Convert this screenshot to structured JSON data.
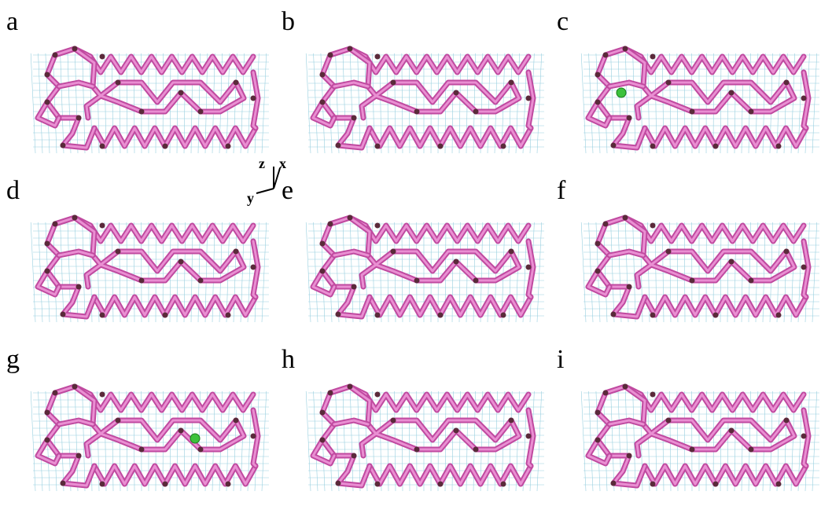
{
  "panels": [
    {
      "label": "a"
    },
    {
      "label": "b"
    },
    {
      "label": "c"
    },
    {
      "label": "d"
    },
    {
      "label": "e"
    },
    {
      "label": "f"
    },
    {
      "label": "g"
    },
    {
      "label": "h"
    },
    {
      "label": "i"
    }
  ],
  "axes": {
    "z": "z",
    "x": "x",
    "y": "y"
  }
}
